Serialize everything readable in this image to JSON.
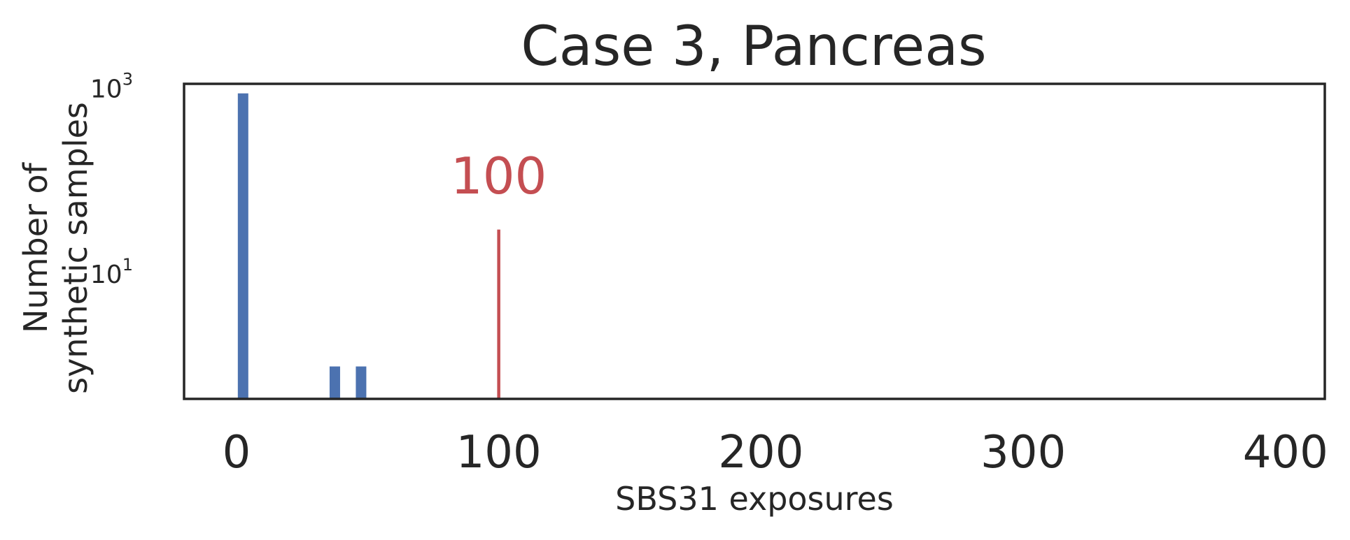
{
  "chart_data": {
    "type": "bar",
    "title": "Case 3, Pancreas",
    "xlabel": "SBS31 exposures",
    "ylabel_lines": [
      "Number of",
      "synthetic samples"
    ],
    "xlim": [
      -20,
      415
    ],
    "ylim_log10": [
      -0.35,
      3.05
    ],
    "yscale": "log",
    "xticks": [
      0,
      100,
      200,
      300,
      400
    ],
    "yticks": [
      {
        "value": 10,
        "base": "10",
        "exp": "1"
      },
      {
        "value": 1000,
        "base": "10",
        "exp": "3"
      }
    ],
    "bars": [
      {
        "x": 2.5,
        "count": 885,
        "width": 4
      },
      {
        "x": 37.5,
        "count": 1,
        "width": 4
      },
      {
        "x": 47.5,
        "count": 1,
        "width": 4
      }
    ],
    "series_color": "#4c72b0",
    "marker": {
      "x": 100,
      "count": 30,
      "label": "100",
      "color": "#c44e52"
    },
    "grid": false
  }
}
